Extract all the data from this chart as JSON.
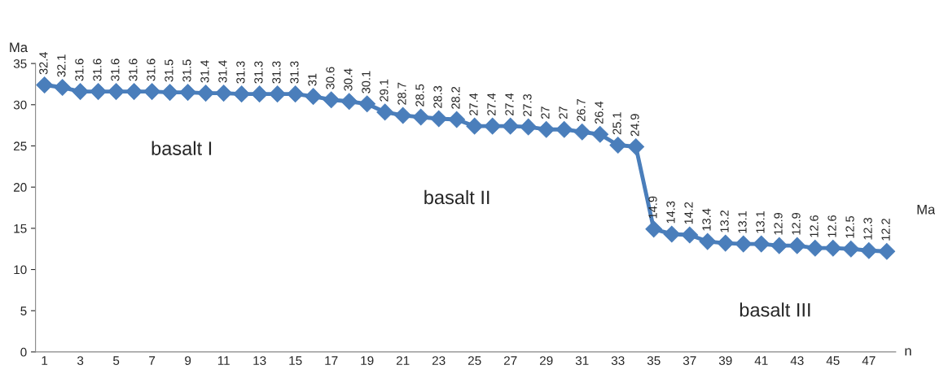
{
  "chart_data": {
    "type": "line",
    "ylabel": "Ma",
    "xlabel": "n",
    "categories": [
      "1",
      null,
      "3",
      null,
      "5",
      null,
      "7",
      null,
      "9",
      null,
      "11",
      null,
      "13",
      null,
      "15",
      null,
      "17",
      null,
      "19",
      null,
      "21",
      null,
      "23",
      null,
      "25",
      null,
      "27",
      null,
      "29",
      null,
      "31",
      null,
      "33",
      null,
      "35",
      null,
      "37",
      null,
      "39",
      null,
      "41",
      null,
      "43",
      null,
      "45",
      null,
      "47",
      null
    ],
    "series": [
      {
        "color": "#4a7ebb",
        "values": [
          32.4,
          32.1,
          31.6,
          31.6,
          31.6,
          31.6,
          31.6,
          31.5,
          31.5,
          31.4,
          31.4,
          31.3,
          31.3,
          31.3,
          31.3,
          31,
          30.6,
          30.4,
          30.1,
          29.1,
          28.7,
          28.5,
          28.3,
          28.2,
          27.4,
          27.4,
          27.4,
          27.3,
          27,
          27,
          26.7,
          26.4,
          25.1,
          24.9,
          14.9,
          14.3,
          14.2,
          13.4,
          13.2,
          13.1,
          13.1,
          12.9,
          12.9,
          12.6,
          12.6,
          12.5,
          12.3,
          12.2
        ]
      }
    ],
    "ylim": [
      0,
      35
    ],
    "yticks": [
      0,
      5,
      10,
      15,
      20,
      25,
      30,
      35
    ],
    "grid": false,
    "marker": "diamond",
    "line_style": "solid",
    "data_labels": true,
    "legend": false,
    "annotations": [
      "basalt I",
      "basalt II",
      "basalt III",
      "Ma"
    ]
  }
}
